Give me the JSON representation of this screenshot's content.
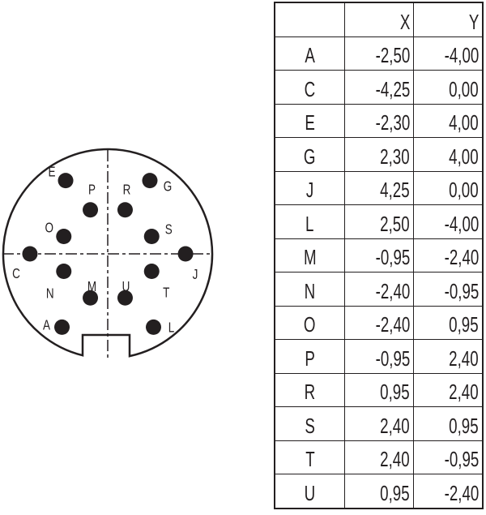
{
  "table": {
    "headers": [
      "",
      "X",
      "Y"
    ],
    "rows": [
      {
        "pin": "A",
        "x": "-2,50",
        "y": "-4,00"
      },
      {
        "pin": "C",
        "x": "-4,25",
        "y": "0,00"
      },
      {
        "pin": "E",
        "x": "-2,30",
        "y": "4,00"
      },
      {
        "pin": "G",
        "x": "2,30",
        "y": "4,00"
      },
      {
        "pin": "J",
        "x": "4,25",
        "y": "0,00"
      },
      {
        "pin": "L",
        "x": "2,50",
        "y": "-4,00"
      },
      {
        "pin": "M",
        "x": "-0,95",
        "y": "-2,40"
      },
      {
        "pin": "N",
        "x": "-2,40",
        "y": "-0,95"
      },
      {
        "pin": "O",
        "x": "-2,40",
        "y": "0,95"
      },
      {
        "pin": "P",
        "x": "-0,95",
        "y": "2,40"
      },
      {
        "pin": "R",
        "x": "0,95",
        "y": "2,40"
      },
      {
        "pin": "S",
        "x": "2,40",
        "y": "0,95"
      },
      {
        "pin": "T",
        "x": "2,40",
        "y": "-0,95"
      },
      {
        "pin": "U",
        "x": "0,95",
        "y": "-2,40"
      }
    ]
  },
  "colors": {
    "ink": "#231f20",
    "background": "#ffffff"
  }
}
